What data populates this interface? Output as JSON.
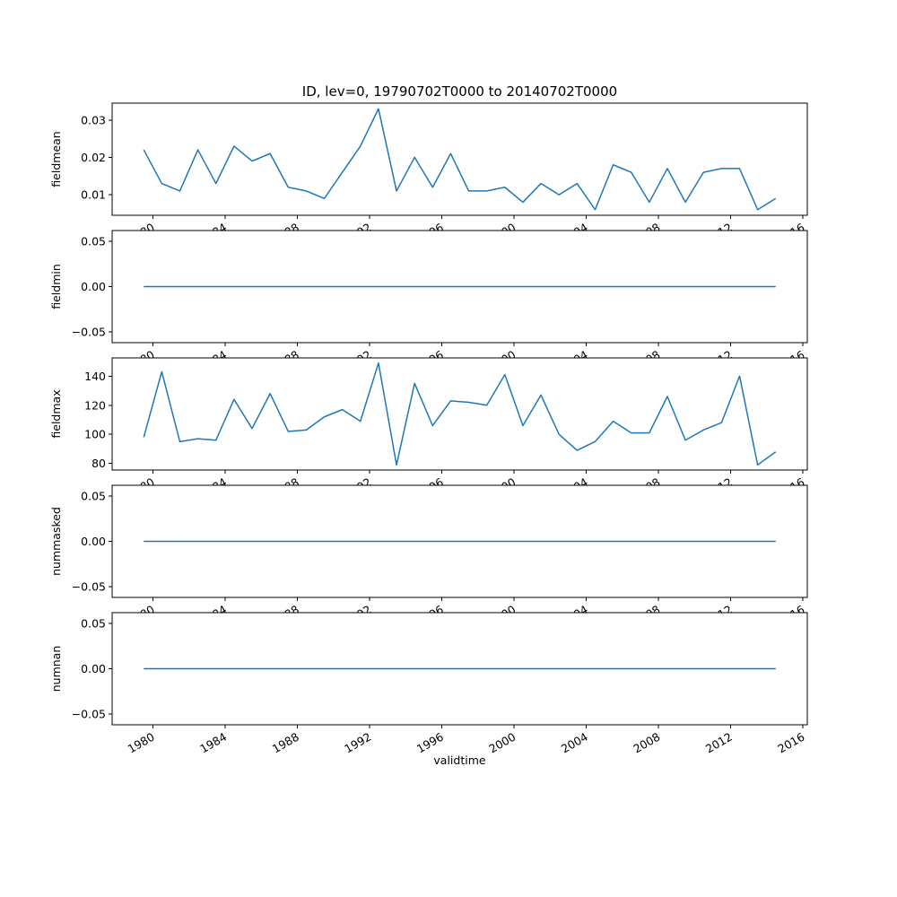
{
  "figure": {
    "background": "#ffffff"
  },
  "chart_data": {
    "type": "line",
    "title": "ID, lev=0, 19790702T0000 to 20140702T0000",
    "xlabel": "validtime",
    "line_color": "#1f77b4",
    "grid": false,
    "legend": "none",
    "x": [
      1979.5,
      1980.5,
      1981.5,
      1982.5,
      1983.5,
      1984.5,
      1985.5,
      1986.5,
      1987.5,
      1988.5,
      1989.5,
      1990.5,
      1991.5,
      1992.5,
      1993.5,
      1994.5,
      1995.5,
      1996.5,
      1997.5,
      1998.5,
      1999.5,
      2000.5,
      2001.5,
      2002.5,
      2003.5,
      2004.5,
      2005.5,
      2006.5,
      2007.5,
      2008.5,
      2009.5,
      2010.5,
      2011.5,
      2012.5,
      2013.5,
      2014.5
    ],
    "xlim": [
      1977.75,
      2016.25
    ],
    "xticks": [
      1980,
      1984,
      1988,
      1992,
      1996,
      2000,
      2004,
      2008,
      2012,
      2016
    ],
    "xtick_labels": [
      "1980",
      "1984",
      "1988",
      "1992",
      "1996",
      "2000",
      "2004",
      "2008",
      "2012",
      "2016"
    ],
    "xtick_rotation_deg": 30,
    "subplots": [
      {
        "ylabel": "fieldmean",
        "values": [
          0.022,
          0.013,
          0.011,
          0.022,
          0.013,
          0.023,
          0.019,
          0.021,
          0.012,
          0.011,
          0.009,
          0.016,
          0.023,
          0.033,
          0.011,
          0.02,
          0.012,
          0.021,
          0.011,
          0.011,
          0.012,
          0.008,
          0.013,
          0.01,
          0.013,
          0.006,
          0.018,
          0.016,
          0.008,
          0.017,
          0.008,
          0.016,
          0.017,
          0.017,
          0.006,
          0.009
        ],
        "yticks": [
          0.01,
          0.02,
          0.03
        ],
        "ytick_labels": [
          "0.01",
          "0.02",
          "0.03"
        ],
        "ylim": [
          0.0045,
          0.0345
        ]
      },
      {
        "ylabel": "fieldmin",
        "values": [
          0,
          0,
          0,
          0,
          0,
          0,
          0,
          0,
          0,
          0,
          0,
          0,
          0,
          0,
          0,
          0,
          0,
          0,
          0,
          0,
          0,
          0,
          0,
          0,
          0,
          0,
          0,
          0,
          0,
          0,
          0,
          0,
          0,
          0,
          0,
          0
        ],
        "yticks": [
          -0.05,
          0,
          0.05
        ],
        "ytick_labels": [
          "−0.05",
          "0.00",
          "0.05"
        ],
        "ylim": [
          -0.062,
          0.062
        ]
      },
      {
        "ylabel": "fieldmax",
        "values": [
          98,
          143,
          95,
          97,
          96,
          124,
          104,
          128,
          102,
          103,
          112,
          117,
          109,
          149,
          79,
          135,
          106,
          123,
          122,
          120,
          141,
          106,
          127,
          100,
          89,
          95,
          109,
          101,
          101,
          126,
          96,
          103,
          108,
          140,
          79,
          88
        ],
        "yticks": [
          80,
          100,
          120,
          140
        ],
        "ytick_labels": [
          "80",
          "100",
          "120",
          "140"
        ],
        "ylim": [
          75.5,
          152.5
        ]
      },
      {
        "ylabel": "nummasked",
        "values": [
          0,
          0,
          0,
          0,
          0,
          0,
          0,
          0,
          0,
          0,
          0,
          0,
          0,
          0,
          0,
          0,
          0,
          0,
          0,
          0,
          0,
          0,
          0,
          0,
          0,
          0,
          0,
          0,
          0,
          0,
          0,
          0,
          0,
          0,
          0,
          0
        ],
        "yticks": [
          -0.05,
          0,
          0.05
        ],
        "ytick_labels": [
          "−0.05",
          "0.00",
          "0.05"
        ],
        "ylim": [
          -0.062,
          0.062
        ]
      },
      {
        "ylabel": "numnan",
        "values": [
          0,
          0,
          0,
          0,
          0,
          0,
          0,
          0,
          0,
          0,
          0,
          0,
          0,
          0,
          0,
          0,
          0,
          0,
          0,
          0,
          0,
          0,
          0,
          0,
          0,
          0,
          0,
          0,
          0,
          0,
          0,
          0,
          0,
          0,
          0,
          0
        ],
        "yticks": [
          -0.05,
          0,
          0.05
        ],
        "ytick_labels": [
          "−0.05",
          "0.00",
          "0.05"
        ],
        "ylim": [
          -0.062,
          0.062
        ]
      }
    ]
  }
}
